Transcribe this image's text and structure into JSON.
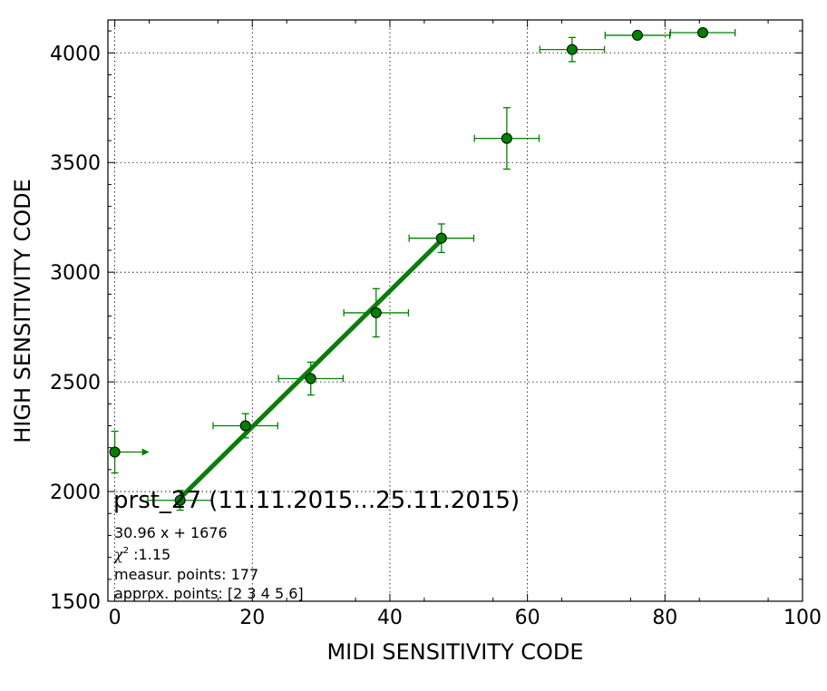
{
  "chart_data": {
    "type": "scatter",
    "xlabel": "MIDI SENSITIVITY CODE",
    "ylabel": "HIGH SENSITIVITY CODE",
    "xlim": [
      -1,
      100
    ],
    "ylim": [
      1500,
      4150
    ],
    "xticks": [
      0,
      20,
      40,
      60,
      80,
      100
    ],
    "yticks": [
      1500,
      2000,
      2500,
      3000,
      3500,
      4000
    ],
    "grid": true,
    "colors": {
      "points": "#008000",
      "fit_line": "#0a7d0a",
      "marker_edge": "#000000"
    },
    "series": [
      {
        "points": [
          {
            "x": 0,
            "y": 2180,
            "xerr": 0,
            "yerr": 95,
            "arrow": "right"
          },
          {
            "x": 9.5,
            "y": 1960,
            "xerr": 4.7,
            "yerr": 45
          },
          {
            "x": 19,
            "y": 2300,
            "xerr": 4.7,
            "yerr": 55
          },
          {
            "x": 28.5,
            "y": 2515,
            "xerr": 4.7,
            "yerr": 75
          },
          {
            "x": 38,
            "y": 2815,
            "xerr": 4.7,
            "yerr": 110
          },
          {
            "x": 47.5,
            "y": 3155,
            "xerr": 4.7,
            "yerr": 65
          },
          {
            "x": 57,
            "y": 3610,
            "xerr": 4.7,
            "yerr": 140
          },
          {
            "x": 66.5,
            "y": 4015,
            "xerr": 4.7,
            "yerr": 55
          },
          {
            "x": 76,
            "y": 4080,
            "xerr": 4.7,
            "yerr": 0
          },
          {
            "x": 85.5,
            "y": 4092,
            "xerr": 4.7,
            "yerr": 0
          }
        ]
      }
    ],
    "fit": {
      "slope": 30.96,
      "intercept": 1676,
      "x_from": 9.5,
      "x_to": 47.5
    },
    "annotations": {
      "title": "prst_27 (11.11.2015...25.11.2015)",
      "equation": "30.96 x + 1676",
      "chi2_symbol": "χ",
      "chi2_sup": "2",
      "chi2_value": " :1.15",
      "measur_points": "measur. points: 177",
      "approx_points": "approx. points: [2 3 4 5 6]"
    }
  }
}
